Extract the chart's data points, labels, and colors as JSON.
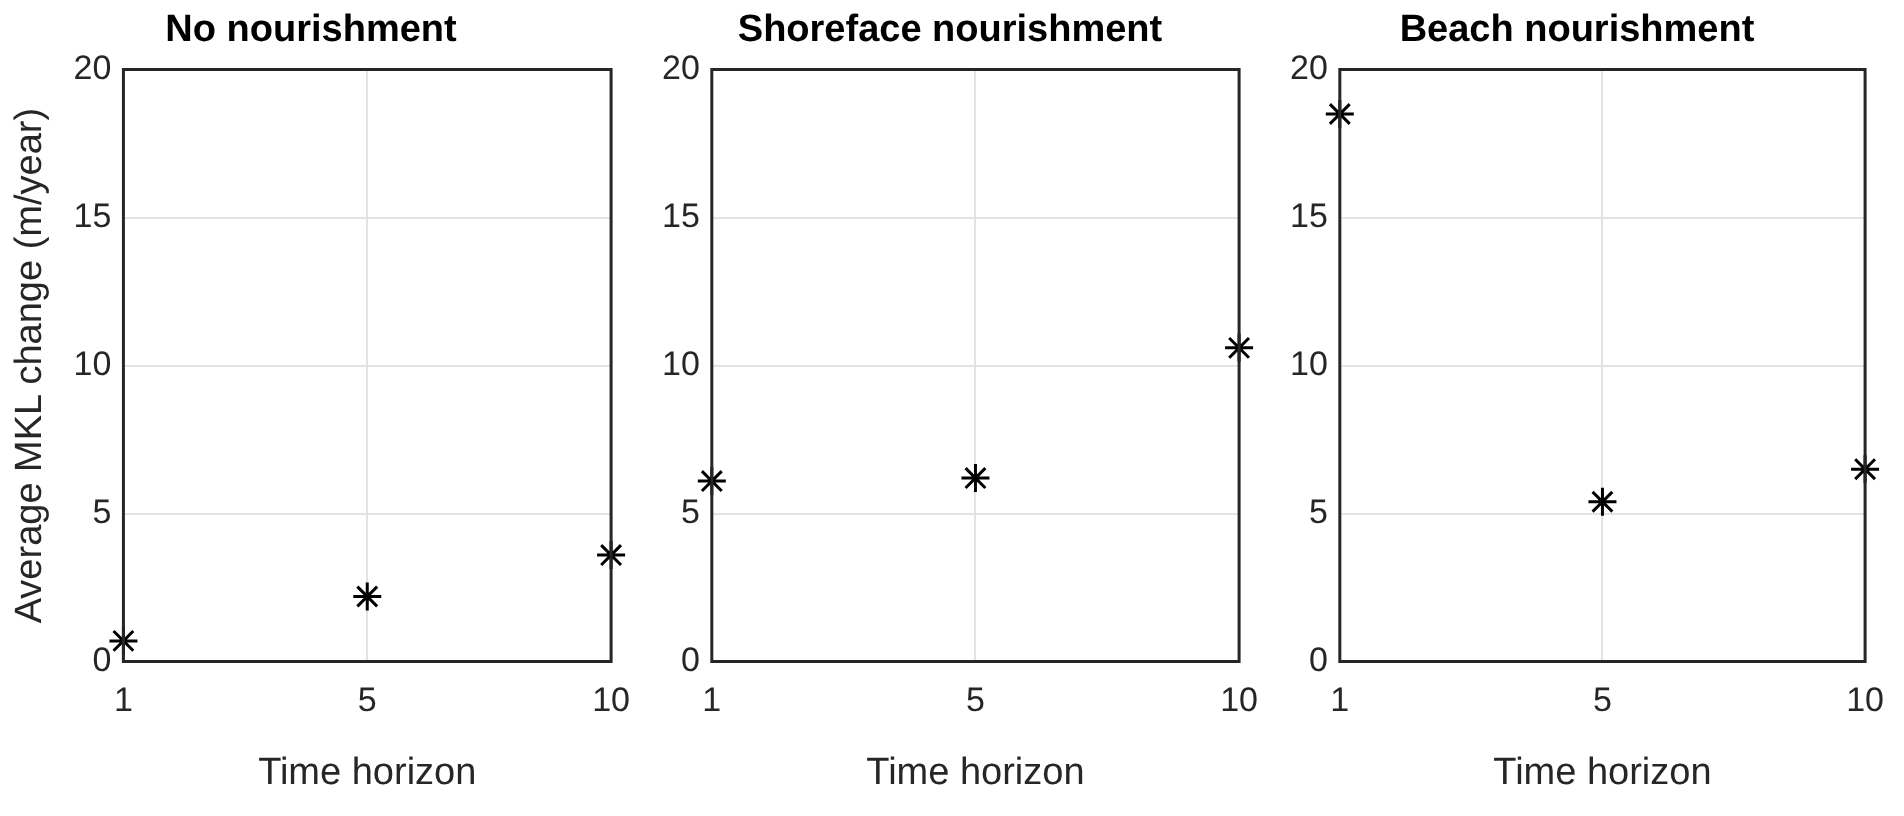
{
  "chart_data": [
    {
      "type": "scatter",
      "title": "No nourishment",
      "xlabel": "Time horizon",
      "ylabel": "Average MKL change (m/year)",
      "categories": [
        "1",
        "5",
        "10"
      ],
      "values": [
        0.7,
        2.2,
        3.6
      ],
      "color": "#000000",
      "marker": "cross",
      "ylim": [
        0,
        20
      ],
      "yticks": [
        0,
        5,
        10,
        15,
        20
      ],
      "grid": true
    },
    {
      "type": "scatter",
      "title": "Shoreface nourishment",
      "xlabel": "Time horizon",
      "categories": [
        "1",
        "5",
        "10"
      ],
      "values": [
        6.1,
        6.2,
        10.6
      ],
      "color": "#000000",
      "marker": "cross",
      "ylim": [
        0,
        20
      ],
      "yticks": [
        0,
        5,
        10,
        15,
        20
      ],
      "grid": true
    },
    {
      "type": "scatter",
      "title": "Beach nourishment",
      "xlabel": "Time horizon",
      "categories": [
        "1",
        "5",
        "10"
      ],
      "values": [
        18.5,
        5.4,
        6.5
      ],
      "color": "#000000",
      "marker": "cross",
      "ylim": [
        0,
        20
      ],
      "yticks": [
        0,
        5,
        10,
        15,
        20
      ],
      "grid": true
    }
  ]
}
